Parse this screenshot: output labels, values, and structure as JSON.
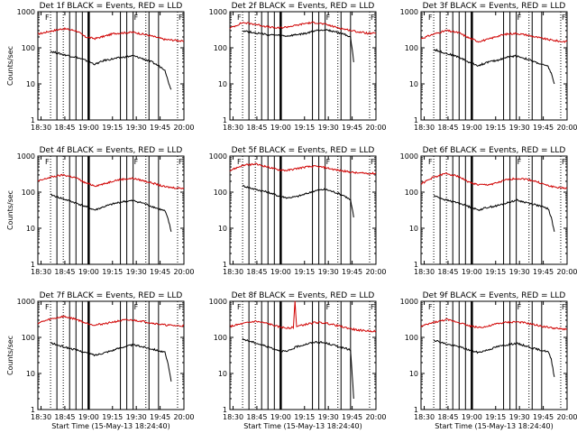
{
  "chart_data": [
    {
      "type": "line",
      "title": "Det 1f BLACK = Events, RED = LLD",
      "xlabel": "",
      "ylabel": "Counts/sec",
      "x_ticks": [
        "18:30",
        "18:45",
        "19:00",
        "19:15",
        "19:30",
        "19:45",
        "20:00"
      ],
      "y_ticks": [
        "1",
        "10",
        "100",
        "1000"
      ],
      "ylog": true,
      "ylim": [
        1,
        1000
      ],
      "series": [
        {
          "color": "#d00000",
          "x": [
            0,
            8,
            16,
            24,
            30,
            36,
            42,
            48,
            54,
            60,
            66,
            72,
            80,
            88,
            92
          ],
          "values": [
            240,
            290,
            340,
            300,
            200,
            180,
            210,
            250,
            260,
            270,
            240,
            210,
            170,
            160,
            150
          ]
        },
        {
          "color": "#000000",
          "x": [
            8,
            16,
            24,
            30,
            36,
            42,
            48,
            54,
            60,
            66,
            72,
            80,
            82,
            84
          ],
          "values": [
            80,
            65,
            55,
            45,
            35,
            45,
            50,
            55,
            60,
            50,
            40,
            25,
            12,
            7
          ]
        }
      ]
    },
    {
      "type": "line",
      "title": "Det 2f BLACK = Events, RED = LLD",
      "xlabel": "",
      "ylabel": "",
      "x_ticks": [
        "18:30",
        "18:45",
        "19:00",
        "19:15",
        "19:30",
        "19:45",
        "20:00"
      ],
      "y_ticks": [
        "1",
        "10",
        "100",
        "1000"
      ],
      "ylog": true,
      "ylim": [
        1,
        1000
      ],
      "series": [
        {
          "color": "#d00000",
          "x": [
            0,
            8,
            16,
            24,
            30,
            36,
            42,
            48,
            54,
            60,
            66,
            72,
            80,
            88,
            92
          ],
          "values": [
            350,
            500,
            450,
            380,
            350,
            380,
            420,
            480,
            500,
            450,
            380,
            330,
            280,
            250,
            250
          ]
        },
        {
          "color": "#000000",
          "x": [
            8,
            16,
            24,
            30,
            36,
            42,
            48,
            54,
            60,
            66,
            72,
            76,
            78
          ],
          "values": [
            300,
            260,
            230,
            220,
            210,
            230,
            250,
            300,
            320,
            280,
            240,
            200,
            40
          ]
        }
      ]
    },
    {
      "type": "line",
      "title": "Det 3f BLACK = Events, RED = LLD",
      "xlabel": "",
      "ylabel": "",
      "x_ticks": [
        "18:30",
        "18:45",
        "19:00",
        "19:15",
        "19:30",
        "19:45",
        "20:00"
      ],
      "y_ticks": [
        "1",
        "10",
        "100",
        "1000"
      ],
      "ylog": true,
      "ylim": [
        1,
        1000
      ],
      "series": [
        {
          "color": "#d00000",
          "x": [
            0,
            8,
            16,
            24,
            30,
            36,
            42,
            48,
            54,
            60,
            66,
            72,
            80,
            88,
            92
          ],
          "values": [
            180,
            240,
            300,
            260,
            190,
            150,
            170,
            210,
            240,
            250,
            230,
            200,
            170,
            150,
            150
          ]
        },
        {
          "color": "#000000",
          "x": [
            8,
            16,
            24,
            30,
            36,
            42,
            48,
            54,
            60,
            66,
            72,
            80,
            82,
            84
          ],
          "values": [
            90,
            70,
            55,
            40,
            32,
            40,
            45,
            55,
            60,
            50,
            40,
            30,
            20,
            10
          ]
        }
      ]
    },
    {
      "type": "line",
      "title": "Det 4f BLACK = Events, RED = LLD",
      "xlabel": "",
      "ylabel": "Counts/sec",
      "x_ticks": [
        "18:30",
        "18:45",
        "19:00",
        "19:15",
        "19:30",
        "19:45",
        "20:00"
      ],
      "y_ticks": [
        "1",
        "10",
        "100",
        "1000"
      ],
      "ylog": true,
      "ylim": [
        1,
        1000
      ],
      "series": [
        {
          "color": "#d00000",
          "x": [
            0,
            8,
            16,
            24,
            30,
            36,
            42,
            48,
            54,
            60,
            66,
            72,
            80,
            88,
            92
          ],
          "values": [
            200,
            260,
            300,
            250,
            180,
            150,
            170,
            210,
            230,
            240,
            210,
            180,
            140,
            130,
            130
          ]
        },
        {
          "color": "#000000",
          "x": [
            8,
            16,
            24,
            30,
            36,
            42,
            48,
            54,
            60,
            66,
            72,
            80,
            82,
            84
          ],
          "values": [
            85,
            65,
            50,
            40,
            32,
            40,
            48,
            55,
            58,
            50,
            40,
            30,
            18,
            8
          ]
        }
      ]
    },
    {
      "type": "line",
      "title": "Det 5f BLACK = Events, RED = LLD",
      "xlabel": "",
      "ylabel": "",
      "x_ticks": [
        "18:30",
        "18:45",
        "19:00",
        "19:15",
        "19:30",
        "19:45",
        "20:00"
      ],
      "y_ticks": [
        "1",
        "10",
        "100",
        "1000"
      ],
      "ylog": true,
      "ylim": [
        1,
        1000
      ],
      "series": [
        {
          "color": "#d00000",
          "x": [
            0,
            8,
            16,
            24,
            30,
            36,
            42,
            48,
            54,
            60,
            66,
            72,
            80,
            88,
            92
          ],
          "values": [
            400,
            550,
            600,
            500,
            420,
            400,
            450,
            500,
            520,
            480,
            420,
            380,
            340,
            330,
            330
          ]
        },
        {
          "color": "#000000",
          "x": [
            8,
            16,
            24,
            30,
            36,
            42,
            48,
            54,
            60,
            66,
            72,
            76,
            78
          ],
          "values": [
            150,
            120,
            100,
            80,
            70,
            75,
            90,
            110,
            120,
            100,
            80,
            60,
            20
          ]
        }
      ]
    },
    {
      "type": "line",
      "title": "Det 6f BLACK = Events, RED = LLD",
      "xlabel": "",
      "ylabel": "",
      "x_ticks": [
        "18:30",
        "18:45",
        "19:00",
        "19:15",
        "19:30",
        "19:45",
        "20:00"
      ],
      "y_ticks": [
        "1",
        "10",
        "100",
        "1000"
      ],
      "ylog": true,
      "ylim": [
        1,
        1000
      ],
      "series": [
        {
          "color": "#d00000",
          "x": [
            0,
            8,
            16,
            24,
            30,
            36,
            42,
            48,
            54,
            60,
            66,
            72,
            80,
            88,
            92
          ],
          "values": [
            170,
            260,
            330,
            270,
            190,
            160,
            160,
            180,
            220,
            240,
            230,
            200,
            150,
            130,
            130
          ]
        },
        {
          "color": "#000000",
          "x": [
            8,
            16,
            24,
            30,
            36,
            42,
            48,
            54,
            60,
            66,
            72,
            80,
            82,
            84
          ],
          "values": [
            80,
            60,
            50,
            40,
            32,
            38,
            42,
            50,
            60,
            52,
            45,
            35,
            20,
            8
          ]
        }
      ]
    },
    {
      "type": "line",
      "title": "Det 7f BLACK = Events, RED = LLD",
      "xlabel": "Start Time (15-May-13 18:24:40)",
      "ylabel": "Counts/sec",
      "x_ticks": [
        "18:30",
        "18:45",
        "19:00",
        "19:15",
        "19:30",
        "19:45",
        "20:00"
      ],
      "y_ticks": [
        "1",
        "10",
        "100",
        "1000"
      ],
      "ylog": true,
      "ylim": [
        1,
        1000
      ],
      "series": [
        {
          "color": "#d00000",
          "x": [
            0,
            8,
            16,
            24,
            30,
            36,
            42,
            48,
            54,
            60,
            66,
            72,
            80,
            88,
            92
          ],
          "values": [
            250,
            320,
            380,
            320,
            250,
            220,
            240,
            270,
            300,
            300,
            280,
            250,
            220,
            210,
            210
          ]
        },
        {
          "color": "#000000",
          "x": [
            8,
            16,
            24,
            30,
            36,
            42,
            48,
            54,
            60,
            66,
            72,
            80,
            82,
            84
          ],
          "values": [
            70,
            55,
            45,
            38,
            32,
            38,
            45,
            55,
            62,
            55,
            48,
            38,
            18,
            6
          ]
        }
      ]
    },
    {
      "type": "line",
      "title": "Det 8f BLACK = Events, RED = LLD",
      "xlabel": "Start Time (15-May-13 18:24:40)",
      "ylabel": "",
      "x_ticks": [
        "18:30",
        "18:45",
        "19:00",
        "19:15",
        "19:30",
        "19:45",
        "20:00"
      ],
      "y_ticks": [
        "1",
        "10",
        "100",
        "1000"
      ],
      "ylog": true,
      "ylim": [
        1,
        1000
      ],
      "series": [
        {
          "color": "#d00000",
          "x": [
            0,
            8,
            16,
            24,
            30,
            36,
            40,
            41,
            42,
            48,
            54,
            60,
            66,
            72,
            80,
            88,
            92
          ],
          "values": [
            200,
            240,
            280,
            240,
            200,
            180,
            190,
            1000,
            200,
            230,
            260,
            250,
            220,
            190,
            160,
            150,
            150
          ]
        },
        {
          "color": "#000000",
          "x": [
            8,
            16,
            24,
            30,
            36,
            42,
            48,
            54,
            60,
            66,
            72,
            76,
            78
          ],
          "values": [
            90,
            70,
            55,
            45,
            40,
            55,
            65,
            75,
            70,
            60,
            50,
            45,
            2
          ]
        }
      ]
    },
    {
      "type": "line",
      "title": "Det 9f BLACK = Events, RED = LLD",
      "xlabel": "Start Time (15-May-13 18:24:40)",
      "ylabel": "",
      "x_ticks": [
        "18:30",
        "18:45",
        "19:00",
        "19:15",
        "19:30",
        "19:45",
        "20:00"
      ],
      "y_ticks": [
        "1",
        "10",
        "100",
        "1000"
      ],
      "ylog": true,
      "ylim": [
        1,
        1000
      ],
      "series": [
        {
          "color": "#d00000",
          "x": [
            0,
            8,
            16,
            24,
            30,
            36,
            42,
            48,
            54,
            60,
            66,
            72,
            80,
            88,
            92
          ],
          "values": [
            200,
            260,
            310,
            260,
            210,
            190,
            200,
            240,
            260,
            270,
            250,
            220,
            190,
            170,
            170
          ]
        },
        {
          "color": "#000000",
          "x": [
            8,
            16,
            24,
            30,
            36,
            42,
            48,
            54,
            60,
            66,
            72,
            80,
            82,
            84
          ],
          "values": [
            85,
            65,
            55,
            45,
            38,
            45,
            55,
            62,
            68,
            58,
            48,
            40,
            25,
            8
          ]
        }
      ]
    }
  ],
  "vlines": {
    "dotted": [
      8,
      16,
      68,
      88
    ],
    "solid": [
      12,
      20,
      24,
      28,
      52,
      56,
      60,
      70,
      76
    ],
    "thick": [
      32
    ],
    "flag_label": "F"
  }
}
